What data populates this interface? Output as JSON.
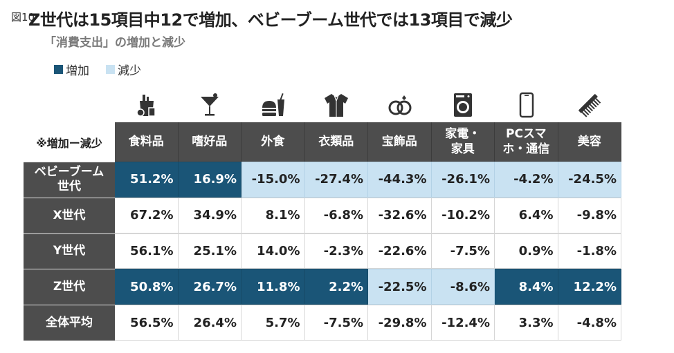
{
  "figure_label": "図10",
  "title": "Z世代は15項目中12で増加、ベビーブーム世代では13項目で減少",
  "subtitle": "「消費支出」の増加と減少",
  "legend": {
    "increase": "増加",
    "decrease": "減少"
  },
  "colors": {
    "increase": "#1a5577",
    "decrease": "#c9e2f2",
    "header": "#4d4d4d"
  },
  "corner_label": "※増加ー減少",
  "column_icons": [
    "grocery-bag-icon",
    "cocktail-glass-icon",
    "fast-food-icon",
    "shirt-icon",
    "rings-icon",
    "washing-machine-icon",
    "smartphone-icon",
    "comb-icon"
  ],
  "chart_data": {
    "type": "table",
    "unit": "%",
    "columns": [
      "食料品",
      "嗜好品",
      "外食",
      "衣類品",
      "宝飾品",
      "家電・\n家具",
      "PCスマ\nホ・通信",
      "美容"
    ],
    "rows": [
      {
        "name": "ベビーブーム\n世代",
        "values": [
          "51.2%",
          "16.9%",
          "-15.0%",
          "-27.4%",
          "-44.3%",
          "-26.1%",
          "-4.2%",
          "-24.5%"
        ],
        "status": [
          "inc",
          "inc",
          "dec",
          "dec",
          "dec",
          "dec",
          "dec",
          "dec"
        ]
      },
      {
        "name": "X世代",
        "values": [
          "67.2%",
          "34.9%",
          "8.1%",
          "-6.8%",
          "-32.6%",
          "-10.2%",
          "6.4%",
          "-9.8%"
        ],
        "status": [
          "neu",
          "neu",
          "neu",
          "neu",
          "neu",
          "neu",
          "neu",
          "neu"
        ]
      },
      {
        "name": "Y世代",
        "values": [
          "56.1%",
          "25.1%",
          "14.0%",
          "-2.3%",
          "-22.6%",
          "-7.5%",
          "0.9%",
          "-1.8%"
        ],
        "status": [
          "neu",
          "neu",
          "neu",
          "neu",
          "neu",
          "neu",
          "neu",
          "neu"
        ]
      },
      {
        "name": "Z世代",
        "values": [
          "50.8%",
          "26.7%",
          "11.8%",
          "2.2%",
          "-22.5%",
          "-8.6%",
          "8.4%",
          "12.2%"
        ],
        "status": [
          "inc",
          "inc",
          "inc",
          "inc",
          "dec",
          "dec",
          "inc",
          "inc"
        ]
      },
      {
        "name": "全体平均",
        "values": [
          "56.5%",
          "26.4%",
          "5.7%",
          "-7.5%",
          "-29.8%",
          "-12.4%",
          "3.3%",
          "-4.8%"
        ],
        "status": [
          "neu",
          "neu",
          "neu",
          "neu",
          "neu",
          "neu",
          "neu",
          "neu"
        ]
      }
    ]
  }
}
